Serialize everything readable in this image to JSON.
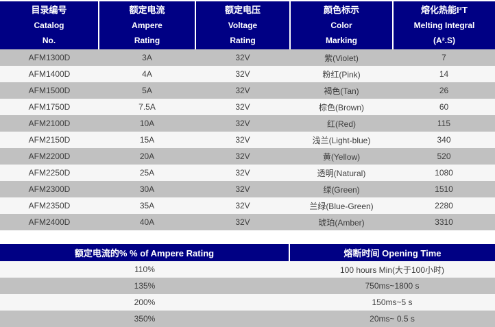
{
  "colors": {
    "header_bg": "#000084",
    "header_text": "#ffffff",
    "row_gray": "#c1c1c1",
    "row_light": "#f6f6f6",
    "row_text": "#3c3c3c",
    "page_bg": "#ffffff"
  },
  "table1": {
    "headers": [
      {
        "line1": "目录编号",
        "line2": "Catalog",
        "line3": "No."
      },
      {
        "line1": "额定电流",
        "line2": "Ampere",
        "line3": "Rating"
      },
      {
        "line1": "额定电压",
        "line2": "Voltage",
        "line3": "Rating"
      },
      {
        "line1": "颜色标示",
        "line2": "Color",
        "line3": "Marking"
      },
      {
        "line1": "熔化热能I²T",
        "line2": "Melting Integral",
        "line3": "(A².S)"
      }
    ],
    "rows": [
      [
        "AFM1300D",
        "3A",
        "32V",
        "紫(Violet)",
        "7"
      ],
      [
        "AFM1400D",
        "4A",
        "32V",
        "粉红(Pink)",
        "14"
      ],
      [
        "AFM1500D",
        "5A",
        "32V",
        "褐色(Tan)",
        "26"
      ],
      [
        "AFM1750D",
        "7.5A",
        "32V",
        "棕色(Brown)",
        "60"
      ],
      [
        "AFM2100D",
        "10A",
        "32V",
        "红(Red)",
        "115"
      ],
      [
        "AFM2150D",
        "15A",
        "32V",
        "浅兰(Light-blue)",
        "340"
      ],
      [
        "AFM2200D",
        "20A",
        "32V",
        "黄(Yellow)",
        "520"
      ],
      [
        "AFM2250D",
        "25A",
        "32V",
        "透明(Natural)",
        "1080"
      ],
      [
        "AFM2300D",
        "30A",
        "32V",
        "绿(Green)",
        "1510"
      ],
      [
        "AFM2350D",
        "35A",
        "32V",
        "兰绿(Blue-Green)",
        "2280"
      ],
      [
        "AFM2400D",
        "40A",
        "32V",
        "琥珀(Amber)",
        "3310"
      ]
    ]
  },
  "table2": {
    "headers": [
      "额定电流的% % of Ampere Rating",
      "熔断时间 Opening Time"
    ],
    "rows": [
      [
        "110%",
        "100 hours Min(大于100小时)"
      ],
      [
        "135%",
        "750ms~1800 s"
      ],
      [
        "200%",
        "150ms~5 s"
      ],
      [
        "350%",
        "20ms~ 0.5 s"
      ]
    ]
  }
}
